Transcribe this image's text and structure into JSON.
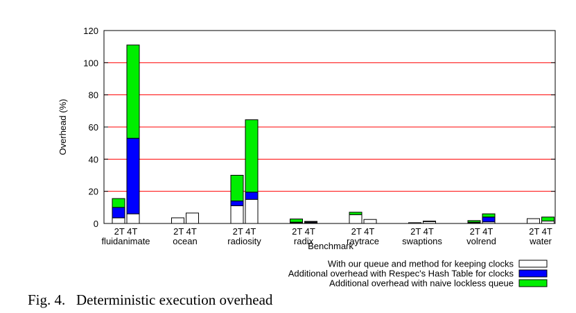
{
  "caption": "Fig. 4.   Deterministic execution overhead",
  "chart_data": {
    "type": "bar",
    "stacked": true,
    "categories": [
      "fluidanimate",
      "ocean",
      "radiosity",
      "radix",
      "raytrace",
      "swaptions",
      "volrend",
      "water"
    ],
    "subcategories": [
      "2T",
      "4T"
    ],
    "xlabel": "Benchmark",
    "ylabel": "Overhead (%)",
    "ylim": [
      0,
      120
    ],
    "yticks": [
      0,
      20,
      40,
      60,
      80,
      100,
      120
    ],
    "grid": "horizontal",
    "legend_position": "bottom-right",
    "series": [
      {
        "name": "With our queue and method for keeping clocks",
        "color": "#ffffff",
        "values": [
          [
            3.5,
            6
          ],
          [
            3.5,
            6.5
          ],
          [
            11,
            15
          ],
          [
            0.5,
            0.5
          ],
          [
            5.5,
            2.5
          ],
          [
            0.5,
            1.2
          ],
          [
            0.5,
            1
          ],
          [
            3,
            1.5
          ]
        ]
      },
      {
        "name": "Additional overhead with Respec's Hash Table for clocks",
        "color": "#0000ff",
        "values": [
          [
            6.5,
            47
          ],
          [
            0,
            0
          ],
          [
            3,
            4.5
          ],
          [
            0.3,
            0.5
          ],
          [
            0,
            0
          ],
          [
            0,
            0.3
          ],
          [
            0.3,
            3
          ],
          [
            0,
            0
          ]
        ]
      },
      {
        "name": "Additional overhead with naive lockless queue",
        "color": "#00ee00",
        "values": [
          [
            5.5,
            58
          ],
          [
            0,
            0
          ],
          [
            16,
            45
          ],
          [
            2,
            0.3
          ],
          [
            1.5,
            0
          ],
          [
            0,
            0
          ],
          [
            1,
            2
          ],
          [
            0,
            2.5
          ]
        ]
      }
    ]
  }
}
